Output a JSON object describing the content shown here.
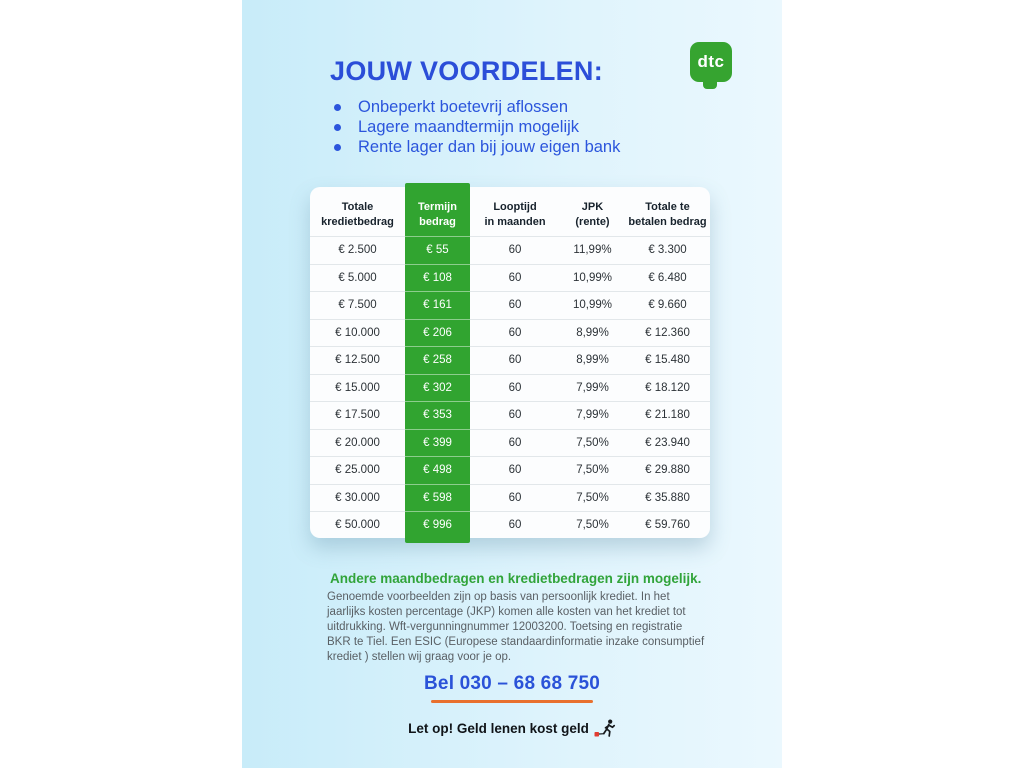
{
  "header": {
    "title": "JOUW VOORDELEN:",
    "bullets": [
      "Onbeperkt boetevrij aflossen",
      "Lagere maandtermijn mogelijk",
      "Rente lager dan bij jouw eigen bank"
    ]
  },
  "logo": {
    "text": "dtc"
  },
  "table": {
    "headers": [
      "Totale\nkredietbedrag",
      "Termijn\nbedrag",
      "Looptijd\nin maanden",
      "JPK\n(rente)",
      "Totale te\nbetalen bedrag"
    ],
    "rows": [
      [
        "€ 2.500",
        "€ 55",
        "60",
        "11,99%",
        "€ 3.300"
      ],
      [
        "€ 5.000",
        "€ 108",
        "60",
        "10,99%",
        "€ 6.480"
      ],
      [
        "€ 7.500",
        "€ 161",
        "60",
        "10,99%",
        "€ 9.660"
      ],
      [
        "€ 10.000",
        "€ 206",
        "60",
        "8,99%",
        "€ 12.360"
      ],
      [
        "€ 12.500",
        "€ 258",
        "60",
        "8,99%",
        "€ 15.480"
      ],
      [
        "€ 15.000",
        "€ 302",
        "60",
        "7,99%",
        "€ 18.120"
      ],
      [
        "€ 17.500",
        "€ 353",
        "60",
        "7,99%",
        "€ 21.180"
      ],
      [
        "€ 20.000",
        "€ 399",
        "60",
        "7,50%",
        "€ 23.940"
      ],
      [
        "€ 25.000",
        "€ 498",
        "60",
        "7,50%",
        "€ 29.880"
      ],
      [
        "€ 30.000",
        "€ 598",
        "60",
        "7,50%",
        "€ 35.880"
      ],
      [
        "€ 50.000",
        "€ 996",
        "60",
        "7,50%",
        "€ 59.760"
      ]
    ]
  },
  "note": {
    "heading": "Andere maandbedragen en kredietbedragen zijn mogelijk.",
    "body": "Genoemde voorbeelden zijn op basis van persoonlijk krediet. In het jaarlijks kosten percentage (JKP) komen alle kosten van het krediet tot uitdrukking. Wft-vergunningnummer 12003200. Toetsing en registratie BKR te Tiel. Een ESIC (Europese standaardinformatie inzake consumptief krediet ) stellen wij graag voor je op."
  },
  "contact": {
    "phone_label": "Bel 030 – 68 68 750"
  },
  "footer": {
    "warning": "Let op! Geld lenen kost geld",
    "warning_icon": "money-warning-icon"
  },
  "colors": {
    "accent_blue": "#2b4ed8",
    "accent_green": "#31a430",
    "underline_orange": "#e8702e",
    "panel_blue_left": "#c8ecf9",
    "panel_blue_right": "#ebf8fe"
  }
}
